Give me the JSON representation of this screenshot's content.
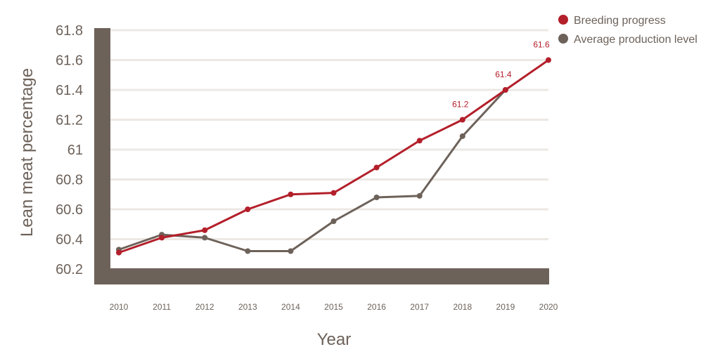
{
  "chart_data": {
    "type": "line",
    "title": "",
    "xlabel": "Year",
    "ylabel": "Lean meat percentage",
    "categories": [
      "2010",
      "2011",
      "2012",
      "2013",
      "2014",
      "2015",
      "2016",
      "2017",
      "2018",
      "2019",
      "2020"
    ],
    "y_ticks": [
      "61.8",
      "61.6",
      "61.4",
      "61.2",
      "61",
      "60.8",
      "60.6",
      "60.4",
      "60.2"
    ],
    "ylim": [
      60.2,
      61.8
    ],
    "grid": true,
    "legend_position": "top-right",
    "series": [
      {
        "name": "Breeding progress",
        "color": "#b31f2a",
        "values": [
          60.31,
          60.41,
          60.46,
          60.6,
          60.7,
          60.71,
          60.88,
          61.06,
          61.2,
          61.4,
          61.6
        ]
      },
      {
        "name": "Average production level",
        "color": "#6d625a",
        "values": [
          60.33,
          60.43,
          60.41,
          60.32,
          60.32,
          60.52,
          60.68,
          60.69,
          61.09,
          61.4,
          null
        ]
      }
    ],
    "annotations": [
      {
        "series": "Breeding progress",
        "x": "2018",
        "label": "61.2"
      },
      {
        "series": "Breeding progress",
        "x": "2019",
        "label": "61.4"
      },
      {
        "series": "Breeding progress",
        "x": "2020",
        "label": "61.6"
      }
    ]
  },
  "legend": {
    "items": [
      {
        "label": "Breeding progress",
        "color": "#b31f2a"
      },
      {
        "label": "Average production level",
        "color": "#6d625a"
      }
    ]
  },
  "axes": {
    "x_title": "Year",
    "y_title": "Lean meat percentage"
  },
  "colors": {
    "frame": "#6d625a",
    "grid": "#ece8e4",
    "text": "#6d625a",
    "accent": "#b31f2a"
  }
}
